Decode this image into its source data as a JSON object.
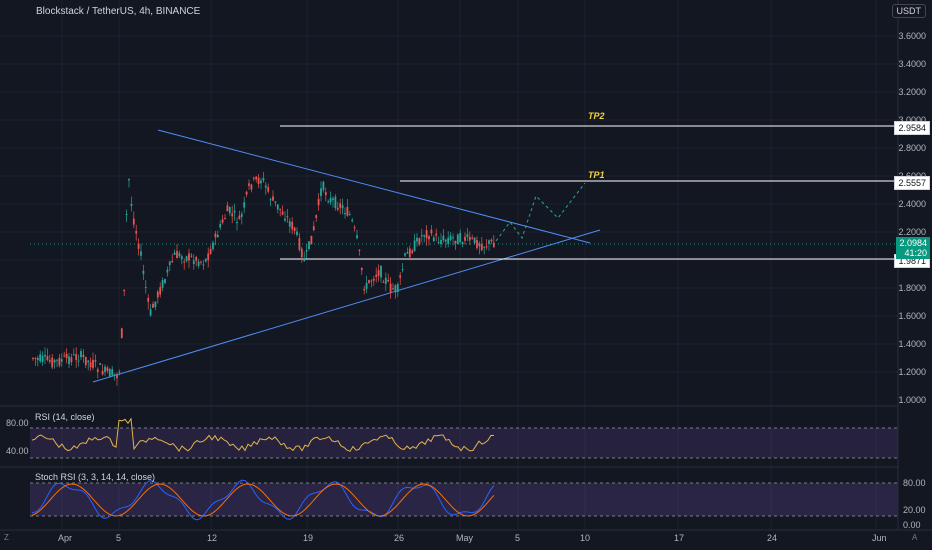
{
  "header": {
    "title": "Blockstack / TetherUS, 4h, BINANCE",
    "currency": "USDT"
  },
  "price_axis": {
    "ticks": [
      "3.6000",
      "3.4000",
      "3.2000",
      "3.0000",
      "2.8000",
      "2.6000",
      "2.4000",
      "2.2000",
      "2.0000",
      "1.8000",
      "1.6000",
      "1.4000",
      "1.2000",
      "1.0000"
    ]
  },
  "levels": {
    "tp2": {
      "label": "TP2",
      "price": "2.9584"
    },
    "tp1": {
      "label": "TP1",
      "price": "2.5557"
    },
    "support": {
      "price": "1.9871"
    },
    "current": {
      "price": "2.0984",
      "countdown": "41:20"
    }
  },
  "rsi": {
    "title": "RSI (14, close)",
    "ticks": [
      "80.00",
      "40.00"
    ]
  },
  "stoch": {
    "title": "Stoch RSI (3, 3, 14, 14, close)",
    "ticks": [
      "80.00",
      "20.00",
      "0.00"
    ]
  },
  "date_axis": {
    "labels": [
      "Apr",
      "5",
      "12",
      "19",
      "26",
      "May",
      "5",
      "10",
      "17",
      "24",
      "Jun"
    ]
  },
  "corners": {
    "left": "Z",
    "right": "A"
  },
  "colors": {
    "background": "#131722",
    "candle_up": "#26a69a",
    "candle_down": "#ef5350",
    "trendline": "#2962ff",
    "tp_label": "#f5d33f",
    "rsi_line": "#e2b44f",
    "stoch_k": "#2962ff",
    "stoch_d": "#ff6d00",
    "indicator_band": "#7e57c2"
  }
}
